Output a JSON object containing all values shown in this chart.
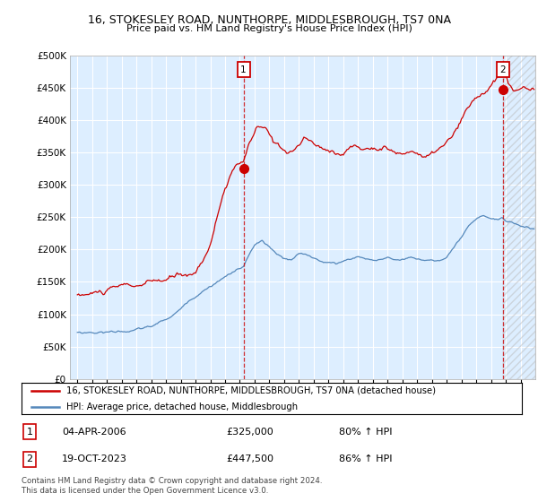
{
  "title1": "16, STOKESLEY ROAD, NUNTHORPE, MIDDLESBROUGH, TS7 0NA",
  "title2": "Price paid vs. HM Land Registry's House Price Index (HPI)",
  "legend_line1": "16, STOKESLEY ROAD, NUNTHORPE, MIDDLESBROUGH, TS7 0NA (detached house)",
  "legend_line2": "HPI: Average price, detached house, Middlesbrough",
  "annotation1_date": "04-APR-2006",
  "annotation1_price": "£325,000",
  "annotation1_hpi": "80% ↑ HPI",
  "annotation2_date": "19-OCT-2023",
  "annotation2_price": "£447,500",
  "annotation2_hpi": "86% ↑ HPI",
  "footer": "Contains HM Land Registry data © Crown copyright and database right 2024.\nThis data is licensed under the Open Government Licence v3.0.",
  "red_color": "#cc0000",
  "blue_color": "#5588bb",
  "bg_color": "#ddeeff",
  "marker1_x": 2006.25,
  "marker1_y": 325000,
  "marker2_x": 2023.8,
  "marker2_y": 447500,
  "ylim": [
    0,
    500000
  ],
  "xlim_start": 1994.5,
  "xlim_end": 2026.0,
  "red_anchors": {
    "1995.0": 130000,
    "1996.0": 132000,
    "1997.0": 135000,
    "1998.0": 138000,
    "1999.0": 138000,
    "2000.0": 140000,
    "2001.0": 142000,
    "2002.0": 148000,
    "2003.0": 152000,
    "2004.0": 200000,
    "2005.0": 290000,
    "2005.5": 310000,
    "2006.25": 325000,
    "2006.7": 350000,
    "2007.2": 375000,
    "2007.8": 365000,
    "2008.3": 345000,
    "2008.8": 340000,
    "2009.3": 335000,
    "2009.8": 340000,
    "2010.3": 355000,
    "2010.8": 348000,
    "2011.3": 340000,
    "2011.8": 332000,
    "2012.3": 335000,
    "2012.8": 330000,
    "2013.3": 338000,
    "2013.8": 345000,
    "2014.3": 338000,
    "2014.8": 340000,
    "2015.3": 345000,
    "2015.8": 350000,
    "2016.3": 342000,
    "2016.8": 335000,
    "2017.3": 338000,
    "2017.8": 342000,
    "2018.3": 335000,
    "2018.8": 330000,
    "2019.3": 340000,
    "2019.8": 345000,
    "2020.3": 355000,
    "2020.8": 370000,
    "2021.3": 390000,
    "2021.8": 405000,
    "2022.3": 415000,
    "2022.8": 425000,
    "2023.3": 435000,
    "2023.8": 447500,
    "2024.2": 425000,
    "2024.8": 415000,
    "2025.3": 420000,
    "2025.8": 415000
  },
  "blue_anchors": {
    "1995.0": 72000,
    "1996.0": 73000,
    "1997.0": 74000,
    "1998.0": 76000,
    "1999.0": 78000,
    "2000.0": 82000,
    "2001.0": 92000,
    "2002.0": 108000,
    "2003.0": 130000,
    "2004.0": 148000,
    "2005.0": 162000,
    "2006.0": 175000,
    "2006.25": 178000,
    "2007.0": 210000,
    "2007.5": 215000,
    "2008.0": 205000,
    "2008.5": 192000,
    "2009.0": 185000,
    "2009.5": 182000,
    "2010.0": 190000,
    "2010.5": 188000,
    "2011.0": 183000,
    "2011.5": 180000,
    "2012.0": 178000,
    "2012.5": 175000,
    "2013.0": 180000,
    "2013.5": 183000,
    "2014.0": 188000,
    "2014.5": 185000,
    "2015.0": 183000,
    "2015.5": 185000,
    "2016.0": 185000,
    "2016.5": 183000,
    "2017.0": 185000,
    "2017.5": 188000,
    "2018.0": 185000,
    "2018.5": 183000,
    "2019.0": 185000,
    "2019.5": 183000,
    "2020.0": 188000,
    "2020.5": 200000,
    "2021.0": 215000,
    "2021.5": 230000,
    "2022.0": 238000,
    "2022.5": 243000,
    "2023.0": 240000,
    "2023.5": 238000,
    "2023.8": 240000,
    "2024.0": 235000,
    "2024.5": 232000,
    "2025.0": 228000,
    "2025.8": 225000
  }
}
